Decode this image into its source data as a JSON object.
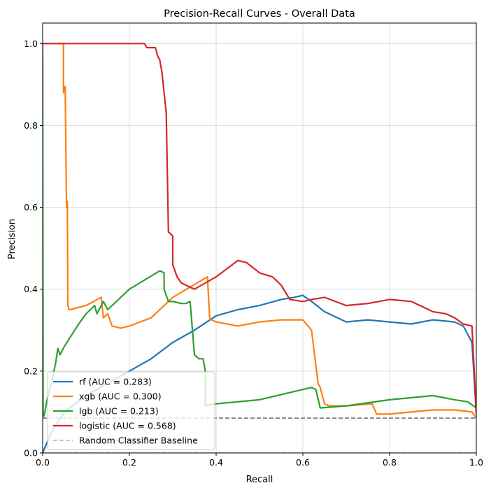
{
  "chart_data": {
    "type": "line",
    "title": "Precision-Recall Curves - Overall Data",
    "xlabel": "Recall",
    "ylabel": "Precision",
    "xlim": [
      0,
      1
    ],
    "ylim": [
      0,
      1.05
    ],
    "xticks": [
      0,
      0.2,
      0.4,
      0.6,
      0.8,
      1.0
    ],
    "xtick_labels": [
      "0.0",
      "0.2",
      "0.4",
      "0.6",
      "0.8",
      "1.0"
    ],
    "yticks": [
      0,
      0.2,
      0.4,
      0.6,
      0.8,
      1.0
    ],
    "ytick_labels": [
      "0.0",
      "0.2",
      "0.4",
      "0.6",
      "0.8",
      "1.0"
    ],
    "grid": true,
    "legend_position": "lower-left",
    "series": [
      {
        "name": "rf (AUC = 0.283)",
        "color": "#1f77b4",
        "x": [
          0,
          0.02,
          0.05,
          0.1,
          0.15,
          0.2,
          0.25,
          0.3,
          0.35,
          0.4,
          0.45,
          0.5,
          0.55,
          0.58,
          0.6,
          0.62,
          0.65,
          0.7,
          0.75,
          0.8,
          0.85,
          0.9,
          0.95,
          0.97,
          0.98,
          0.99,
          1.0
        ],
        "y": [
          0.0,
          0.05,
          0.1,
          0.14,
          0.17,
          0.2,
          0.23,
          0.27,
          0.3,
          0.335,
          0.35,
          0.36,
          0.375,
          0.38,
          0.385,
          0.37,
          0.345,
          0.32,
          0.325,
          0.32,
          0.315,
          0.325,
          0.32,
          0.31,
          0.29,
          0.27,
          0.095
        ]
      },
      {
        "name": "xgb (AUC = 0.300)",
        "color": "#ff7f0e",
        "x": [
          0,
          0.048,
          0.048,
          0.052,
          0.055,
          0.057,
          0.058,
          0.06,
          0.06,
          0.063,
          0.1,
          0.135,
          0.14,
          0.15,
          0.16,
          0.18,
          0.2,
          0.25,
          0.3,
          0.38,
          0.385,
          0.39,
          0.4,
          0.45,
          0.5,
          0.55,
          0.6,
          0.62,
          0.635,
          0.64,
          0.65,
          0.66,
          0.7,
          0.76,
          0.77,
          0.8,
          0.85,
          0.9,
          0.95,
          0.99,
          1.0
        ],
        "y": [
          1.0,
          1.0,
          0.88,
          0.895,
          0.6,
          0.615,
          0.36,
          0.355,
          0.35,
          0.35,
          0.36,
          0.38,
          0.33,
          0.34,
          0.31,
          0.305,
          0.31,
          0.33,
          0.38,
          0.43,
          0.33,
          0.325,
          0.32,
          0.31,
          0.32,
          0.325,
          0.325,
          0.3,
          0.17,
          0.16,
          0.12,
          0.115,
          0.115,
          0.12,
          0.095,
          0.095,
          0.1,
          0.105,
          0.105,
          0.1,
          0.085
        ]
      },
      {
        "name": "lgb (AUC = 0.213)",
        "color": "#2ca02c",
        "x": [
          0,
          0.001,
          0.003,
          0.005,
          0.01,
          0.02,
          0.03,
          0.035,
          0.04,
          0.05,
          0.08,
          0.1,
          0.11,
          0.12,
          0.125,
          0.14,
          0.15,
          0.2,
          0.27,
          0.28,
          0.28,
          0.29,
          0.3,
          0.32,
          0.33,
          0.34,
          0.35,
          0.36,
          0.37,
          0.375,
          0.375,
          0.4,
          0.5,
          0.6,
          0.62,
          0.63,
          0.64,
          0.7,
          0.8,
          0.9,
          0.95,
          0.98,
          1.0
        ],
        "y": [
          1.0,
          0.09,
          0.09,
          0.1,
          0.13,
          0.17,
          0.22,
          0.255,
          0.24,
          0.26,
          0.31,
          0.34,
          0.35,
          0.36,
          0.34,
          0.37,
          0.35,
          0.4,
          0.445,
          0.44,
          0.4,
          0.37,
          0.37,
          0.365,
          0.365,
          0.37,
          0.24,
          0.23,
          0.23,
          0.2,
          0.115,
          0.12,
          0.13,
          0.155,
          0.16,
          0.155,
          0.11,
          0.115,
          0.13,
          0.14,
          0.13,
          0.125,
          0.11
        ]
      },
      {
        "name": "logistic (AUC = 0.568)",
        "color": "#d62728",
        "x": [
          0,
          0.05,
          0.1,
          0.15,
          0.2,
          0.235,
          0.24,
          0.26,
          0.265,
          0.27,
          0.275,
          0.28,
          0.285,
          0.29,
          0.3,
          0.3,
          0.31,
          0.32,
          0.35,
          0.4,
          0.45,
          0.47,
          0.5,
          0.53,
          0.55,
          0.57,
          0.6,
          0.62,
          0.65,
          0.7,
          0.75,
          0.8,
          0.85,
          0.9,
          0.93,
          0.95,
          0.97,
          0.99,
          1.0
        ],
        "y": [
          1.0,
          1.0,
          1.0,
          1.0,
          1.0,
          1.0,
          0.99,
          0.99,
          0.97,
          0.96,
          0.93,
          0.88,
          0.83,
          0.54,
          0.53,
          0.46,
          0.43,
          0.415,
          0.4,
          0.43,
          0.47,
          0.465,
          0.44,
          0.43,
          0.41,
          0.375,
          0.37,
          0.375,
          0.38,
          0.36,
          0.365,
          0.375,
          0.37,
          0.345,
          0.34,
          0.33,
          0.315,
          0.31,
          0.095
        ]
      },
      {
        "name": "Random Classifier Baseline",
        "color": "#b0b0b0",
        "style": "dashed",
        "x": [
          0,
          1
        ],
        "y": [
          0,
          0
        ]
      }
    ],
    "baseline_dashed": {
      "color": "#808080",
      "style": "dashed",
      "x": [
        0,
        1
      ],
      "y": [
        0.085,
        0.085
      ]
    }
  }
}
